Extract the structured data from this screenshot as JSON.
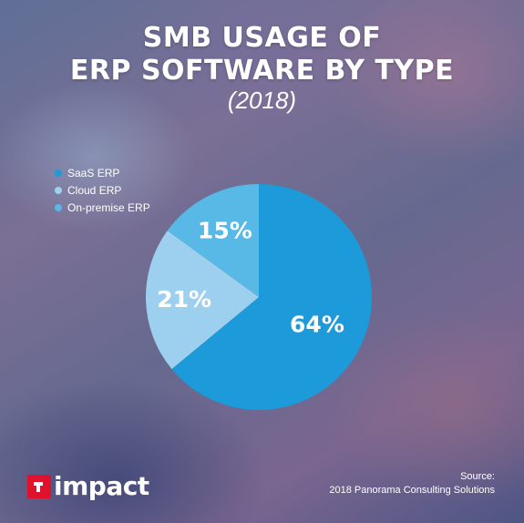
{
  "title": {
    "line1": "SMB USAGE OF",
    "line2": "ERP SOFTWARE BY TYPE",
    "subtitle": "(2018)"
  },
  "chart_data": {
    "type": "pie",
    "categories": [
      "SaaS ERP",
      "Cloud ERP",
      "On-premise ERP"
    ],
    "values": [
      64,
      21,
      15
    ],
    "labels": [
      "64%",
      "21%",
      "15%"
    ],
    "colors": [
      "#1d9ad9",
      "#9dd0ef",
      "#58b8e6"
    ],
    "legend": "top-left"
  },
  "source": {
    "heading": "Source:",
    "text": "2018 Panorama Consulting Solutions"
  },
  "logo": {
    "text": "impact",
    "color": "#e0122b"
  }
}
